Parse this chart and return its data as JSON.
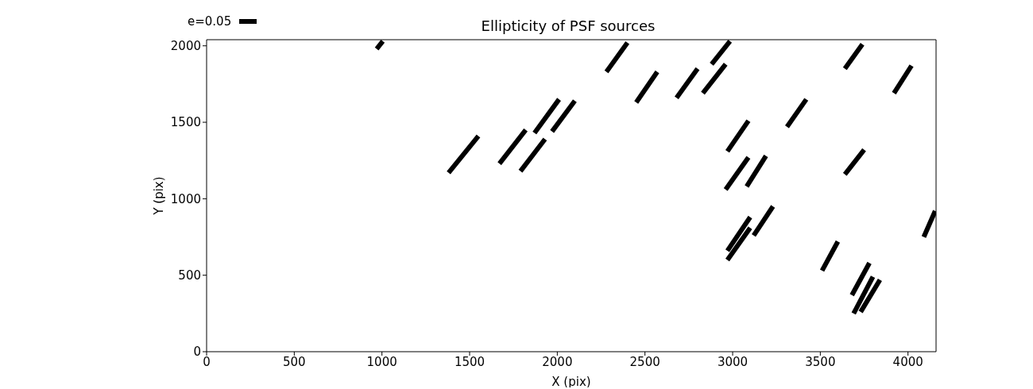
{
  "chart_data": {
    "type": "line",
    "title": "Ellipticity of PSF sources",
    "xlabel": "X (pix)",
    "ylabel": "Y (pix)",
    "xlim": [
      0,
      4160
    ],
    "ylim": [
      0,
      2040
    ],
    "xticks": [
      0,
      500,
      1000,
      1500,
      2000,
      2500,
      3000,
      3500,
      4000
    ],
    "yticks": [
      0,
      500,
      1000,
      1500,
      2000
    ],
    "legend": "top left",
    "marker": "none",
    "line_style": "solid",
    "series": [
      {
        "name": "e=0.05",
        "color": "#000000",
        "x": [
          970,
          1005,
          null,
          1380,
          1550,
          null,
          1670,
          1820,
          null,
          1790,
          1930,
          null,
          1870,
          2010,
          null,
          1970,
          2100,
          null,
          2280,
          2400,
          null,
          2880,
          2985,
          null,
          2450,
          2570,
          null,
          2680,
          2800,
          null,
          2830,
          2960,
          null,
          3640,
          3740,
          null,
          3920,
          4020,
          null,
          3310,
          3420,
          null,
          2970,
          3090,
          null,
          3640,
          3750,
          null,
          2960,
          3090,
          null,
          3080,
          3190,
          null,
          4090,
          4155,
          null,
          2970,
          3100,
          null,
          3120,
          3230,
          null,
          3510,
          3600,
          null,
          3680,
          3780,
          null,
          3690,
          3800
        ],
        "values": [
          1980,
          2030,
          null,
          1170,
          1410,
          null,
          1230,
          1450,
          null,
          1180,
          1390,
          null,
          1430,
          1650,
          null,
          1440,
          1640,
          null,
          1830,
          2020,
          null,
          1880,
          2030,
          null,
          1630,
          1830,
          null,
          1660,
          1850,
          null,
          1690,
          1880,
          null,
          1850,
          2010,
          null,
          1690,
          1870,
          null,
          1470,
          1650,
          null,
          1310,
          1510,
          null,
          1160,
          1320,
          null,
          1060,
          1270,
          null,
          1080,
          1280,
          null,
          750,
          920,
          null,
          660,
          880,
          null,
          760,
          950,
          null,
          530,
          720,
          null,
          370,
          580,
          null,
          250,
          490
        ]
      },
      {
        "color": "#000000",
        "x": [
          2970,
          3100,
          null,
          3730,
          3840
        ],
        "values": [
          600,
          810,
          null,
          260,
          470
        ]
      }
    ]
  }
}
